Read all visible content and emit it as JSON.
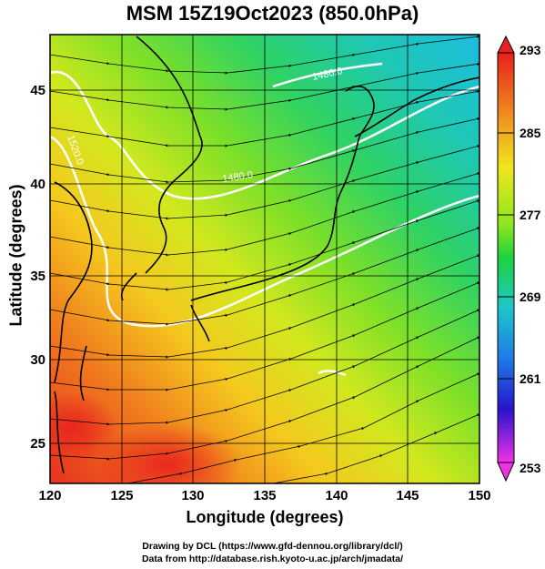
{
  "title": "MSM 15Z19Oct2023 (850.0hPa)",
  "x_axis": {
    "label": "Longitude (degrees)",
    "ticks": [
      "120",
      "125",
      "130",
      "135",
      "140",
      "145",
      "150"
    ]
  },
  "y_axis": {
    "label": "Latitude  (degrees)",
    "ticks": [
      "25",
      "30",
      "35",
      "40",
      "45"
    ]
  },
  "colorbar": {
    "ticks": [
      "293",
      "285",
      "277",
      "269",
      "261",
      "253"
    ],
    "min": 253,
    "max": 293
  },
  "contour_labels": [
    "1480.0",
    "1480.0",
    "1520.0"
  ],
  "credits": {
    "line1": "Drawing by DCL (https://www.gfd-dennou.org/library/dcl/)",
    "line2": "Data from http://database.rish.kyoto-u.ac.jp/arch/jmadata/"
  },
  "map_extent": {
    "lon": [
      120,
      150
    ],
    "lat": [
      22.5,
      47.5
    ]
  },
  "colors": {
    "warm": "#e8321e",
    "mid": "#9ce830",
    "cool": "#1ec8c8",
    "coast": "#000000",
    "contour": "#ffffff"
  }
}
